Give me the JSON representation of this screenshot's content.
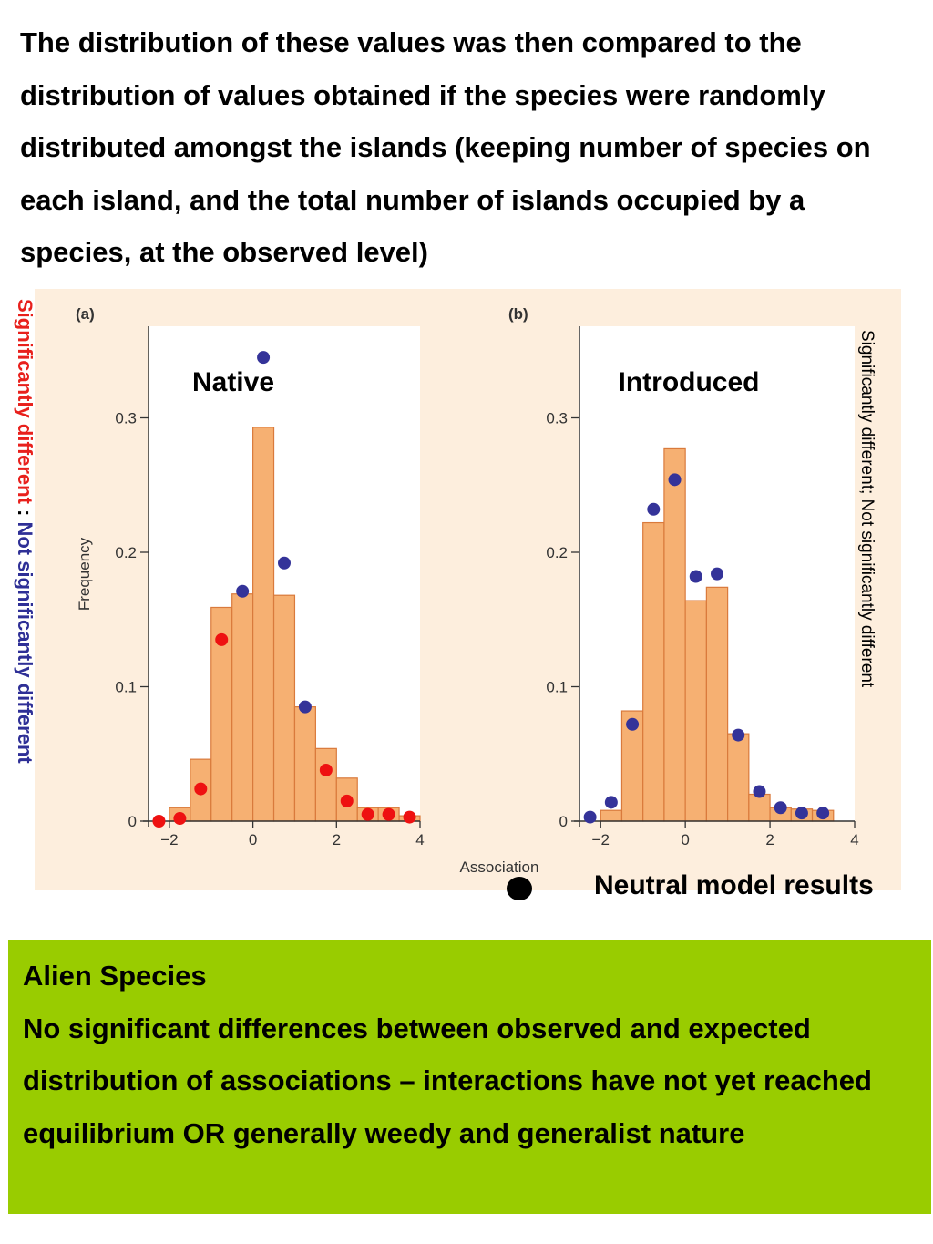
{
  "intro_text": "The distribution of these values was then compared to the distribution of values obtained if the species were randomly distributed amongst the islands (keeping number of species on each island, and the total number of islands occupied by a species, at the observed level)",
  "side_label_left": {
    "red_part": "Significantly different",
    "separator": " : ",
    "blue_part": "Not significantly different"
  },
  "side_label_right": "Significantly different; Not significantly different",
  "legend": {
    "label": "Neutral model results",
    "marker": "black-dot"
  },
  "summary_box": {
    "heading": "Alien Species",
    "body": "No significant differences between observed and expected distribution of associations – interactions have not yet reached equilibrium OR generally weedy and generalist nature"
  },
  "colors": {
    "bar_fill": "#f6b072",
    "bar_stroke": "#d97a3c",
    "panel_bg": "#fdeedd",
    "significant_dot": "#ee1111",
    "not_significant_dot": "#343399",
    "summary_bg": "#99cc00"
  },
  "chart_data": [
    {
      "type": "bar",
      "panel_label": "(a)",
      "title": "Native",
      "ylabel": "Frequency",
      "xlabel": "Association",
      "xlim": [
        -2.5,
        4
      ],
      "ylim": [
        0,
        0.36
      ],
      "xticks": [
        -2,
        0,
        2,
        4
      ],
      "yticks": [
        0,
        0.1,
        0.2,
        0.3
      ],
      "ytick_labels": [
        "0",
        "0.1",
        "0.2",
        "0.3"
      ],
      "bin_edges": [
        -2.0,
        -1.5,
        -1.0,
        -0.5,
        0.0,
        0.5,
        1.0,
        1.5,
        2.0,
        2.5,
        3.0,
        3.5,
        4.0
      ],
      "values": [
        0.01,
        0.046,
        0.159,
        0.169,
        0.293,
        0.168,
        0.085,
        0.054,
        0.032,
        0.01,
        0.01,
        0.004
      ],
      "neutral_points": [
        {
          "x": -2.25,
          "y": 0.0,
          "significant": true
        },
        {
          "x": -1.75,
          "y": 0.002,
          "significant": true
        },
        {
          "x": -1.25,
          "y": 0.024,
          "significant": true
        },
        {
          "x": -0.75,
          "y": 0.135,
          "significant": true
        },
        {
          "x": -0.25,
          "y": 0.171,
          "significant": false
        },
        {
          "x": 0.25,
          "y": 0.345,
          "significant": false
        },
        {
          "x": 0.75,
          "y": 0.192,
          "significant": false
        },
        {
          "x": 1.25,
          "y": 0.085,
          "significant": false
        },
        {
          "x": 1.75,
          "y": 0.038,
          "significant": true
        },
        {
          "x": 2.25,
          "y": 0.015,
          "significant": true
        },
        {
          "x": 2.75,
          "y": 0.005,
          "significant": true
        },
        {
          "x": 3.25,
          "y": 0.005,
          "significant": true
        },
        {
          "x": 3.75,
          "y": 0.003,
          "significant": true
        }
      ]
    },
    {
      "type": "bar",
      "panel_label": "(b)",
      "title": "Introduced",
      "ylabel": "",
      "xlabel": "",
      "xlim": [
        -2.5,
        4
      ],
      "ylim": [
        0,
        0.36
      ],
      "xticks": [
        -2,
        0,
        2,
        4
      ],
      "yticks": [
        0,
        0.1,
        0.2,
        0.3
      ],
      "ytick_labels": [
        "0",
        "0.1",
        "0.2",
        "0.3"
      ],
      "bin_edges": [
        -2.0,
        -1.5,
        -1.0,
        -0.5,
        0.0,
        0.5,
        1.0,
        1.5,
        2.0,
        2.5,
        3.0,
        3.5
      ],
      "values": [
        0.008,
        0.082,
        0.222,
        0.277,
        0.164,
        0.174,
        0.065,
        0.02,
        0.01,
        0.009,
        0.008
      ],
      "neutral_points": [
        {
          "x": -2.25,
          "y": 0.003,
          "significant": false
        },
        {
          "x": -1.75,
          "y": 0.014,
          "significant": false
        },
        {
          "x": -1.25,
          "y": 0.072,
          "significant": false
        },
        {
          "x": -0.75,
          "y": 0.232,
          "significant": false
        },
        {
          "x": -0.25,
          "y": 0.254,
          "significant": false
        },
        {
          "x": 0.25,
          "y": 0.182,
          "significant": false
        },
        {
          "x": 0.75,
          "y": 0.184,
          "significant": false
        },
        {
          "x": 1.25,
          "y": 0.064,
          "significant": false
        },
        {
          "x": 1.75,
          "y": 0.022,
          "significant": false
        },
        {
          "x": 2.25,
          "y": 0.01,
          "significant": false
        },
        {
          "x": 2.75,
          "y": 0.006,
          "significant": false
        },
        {
          "x": 3.25,
          "y": 0.006,
          "significant": false
        }
      ]
    }
  ]
}
